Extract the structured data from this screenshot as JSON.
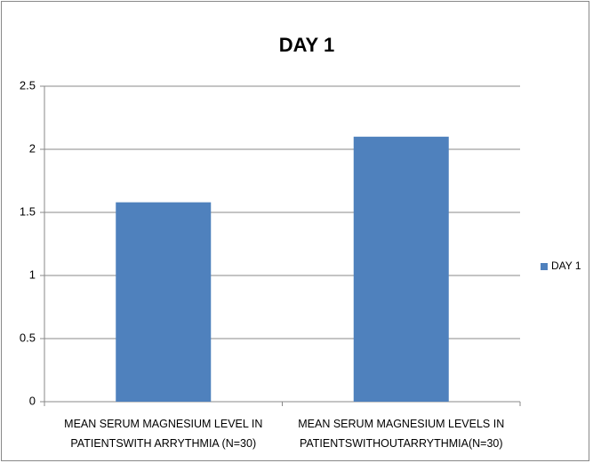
{
  "chart_data": {
    "type": "bar",
    "title": "DAY 1",
    "categories": [
      "MEAN SERUM MAGNESIUM LEVEL IN PATIENTSWITH ARRYTHMIA (N=30)",
      "MEAN SERUM MAGNESIUM LEVELS IN PATIENTSWITHOUTARRYTHMIA(N=30)"
    ],
    "series": [
      {
        "name": "DAY 1",
        "color": "#4f81bd",
        "values": [
          1.58,
          2.1
        ]
      }
    ],
    "ylim": [
      0,
      2.5
    ],
    "yticks": [
      0,
      0.5,
      1,
      1.5,
      2,
      2.5
    ],
    "grid": true,
    "legend": "right"
  }
}
